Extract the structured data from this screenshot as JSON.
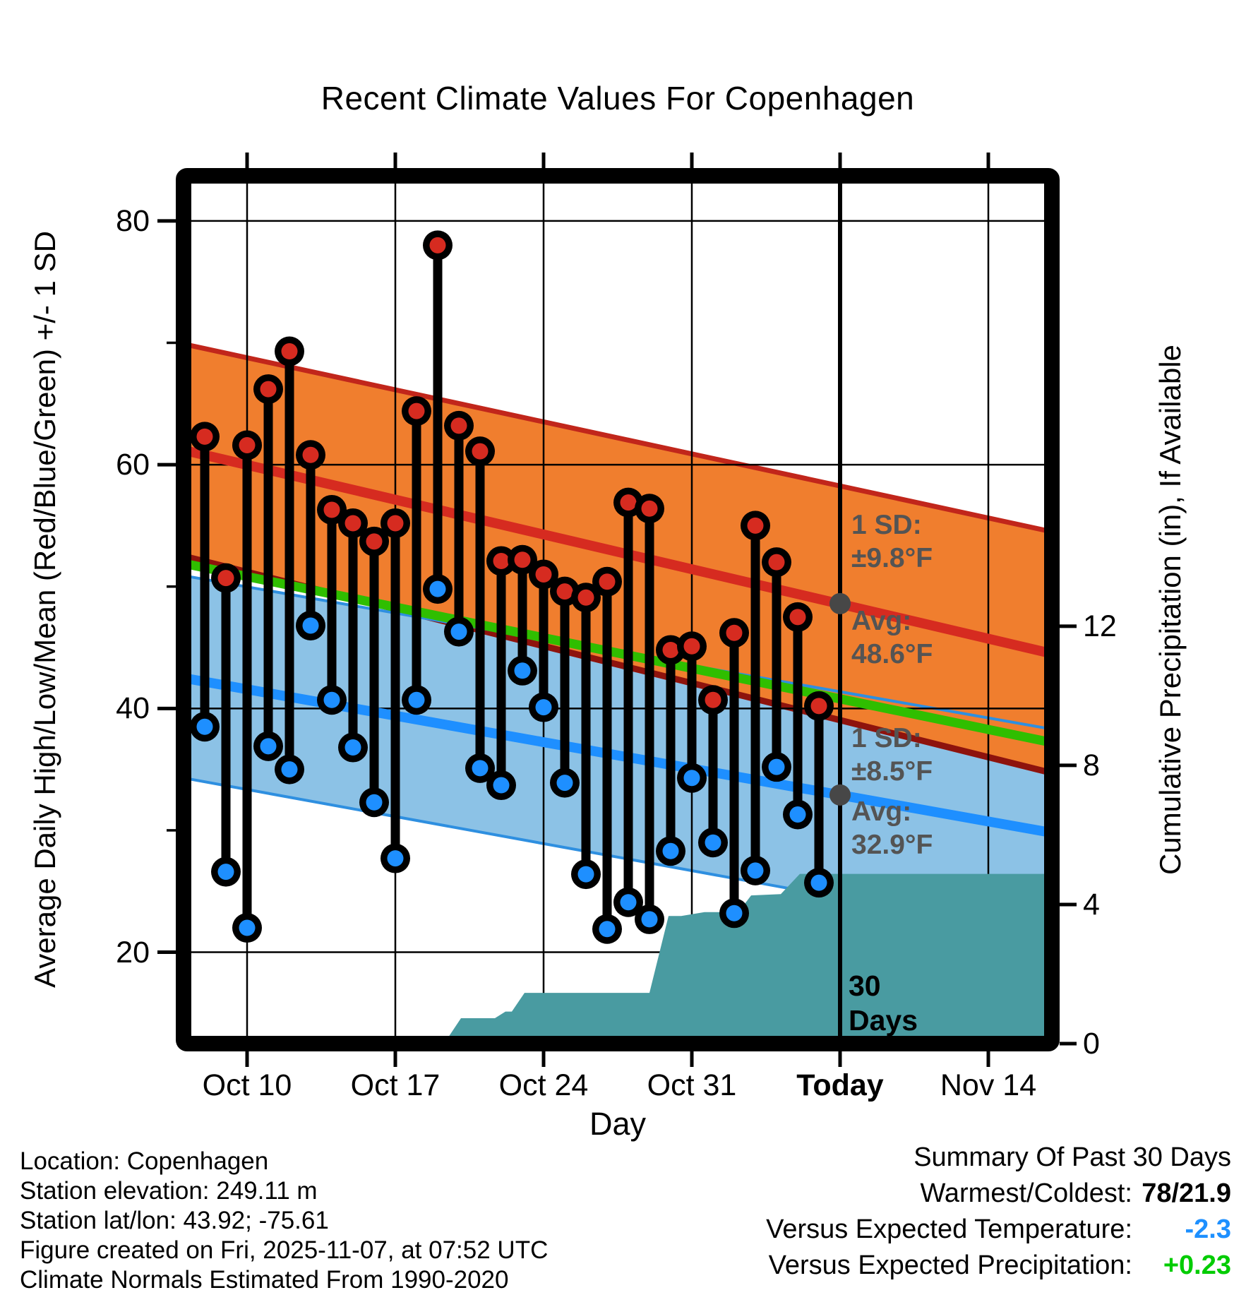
{
  "title": "Recent Climate Values For Copenhagen",
  "axis": {
    "y_left_label": "Average Daily High/Low/Mean (Red/Blue/Green) +/- 1 SD",
    "y_right_label": "Cumulative Precipitation (in), If Available",
    "x_label": "Day"
  },
  "chart_data": {
    "type": "line",
    "title": "Recent Climate Values For Copenhagen",
    "xlabel": "Day",
    "ylabel_left": "Average Daily High/Low/Mean (Red/Blue/Green) +/- 1 SD",
    "ylabel_right": "Cumulative Precipitation (in), If Available",
    "x_tick_labels": [
      "Oct 10",
      "Oct 17",
      "Oct 24",
      "Oct 31",
      "Today",
      "Nov 14"
    ],
    "x_tick_days": [
      2,
      9,
      16,
      23,
      30,
      37
    ],
    "x_bold_tick": "Today",
    "x_range_days": [
      -1,
      40
    ],
    "y_left_ticks_f": [
      80,
      60,
      40,
      20
    ],
    "y_left_minor_ticks_f": [
      70,
      50,
      30
    ],
    "y_left_range_f": [
      12.5,
      83.7
    ],
    "y_right_ticks_in": [
      12,
      8,
      4,
      0
    ],
    "y_right_range_in": [
      0,
      24.95
    ],
    "grid": "major-only",
    "days": [
      "Oct 8",
      "Oct 9",
      "Oct 10",
      "Oct 11",
      "Oct 12",
      "Oct 13",
      "Oct 14",
      "Oct 15",
      "Oct 16",
      "Oct 17",
      "Oct 18",
      "Oct 19",
      "Oct 20",
      "Oct 21",
      "Oct 22",
      "Oct 23",
      "Oct 24",
      "Oct 25",
      "Oct 26",
      "Oct 27",
      "Oct 28",
      "Oct 29",
      "Oct 30",
      "Oct 31",
      "Nov 1",
      "Nov 2",
      "Nov 3",
      "Nov 4",
      "Nov 5",
      "Nov 6"
    ],
    "daily_high_f": [
      62.3,
      50.7,
      61.6,
      66.2,
      69.3,
      60.8,
      56.3,
      55.2,
      53.7,
      55.2,
      64.4,
      78,
      63.2,
      61.1,
      52.1,
      52.2,
      51,
      49.6,
      49.1,
      50.4,
      56.9,
      56.4,
      44.8,
      45.1,
      40.7,
      46.2,
      55,
      52,
      47.5,
      40.2
    ],
    "daily_low_f": [
      38.5,
      26.6,
      22,
      36.9,
      35,
      46.8,
      40.7,
      36.8,
      32.3,
      27.7,
      40.7,
      49.8,
      46.3,
      35.1,
      33.7,
      43.1,
      40.1,
      33.9,
      26.4,
      21.9,
      24.1,
      22.7,
      28.3,
      34.3,
      29,
      23.2,
      26.7,
      35.2,
      31.3,
      25.7
    ],
    "normals_linear_left_to_right": {
      "high_avg_f": [
        61.2,
        44.5
      ],
      "high_band_top_f": [
        69.9,
        54.5
      ],
      "high_band_bottom_f": [
        52.5,
        34.7
      ],
      "mean_avg_f": [
        51.9,
        37.2
      ],
      "low_avg_f": [
        42.5,
        29.8
      ],
      "low_band_top_f": [
        50.9,
        38.3
      ],
      "low_band_bottom_f": [
        34.3,
        21.3
      ]
    },
    "today_marker": {
      "day_index": 30,
      "high_avg_f": 48.6,
      "high_sd_f": 9.8,
      "low_avg_f": 32.9,
      "low_sd_f": 8.5
    },
    "precip_cumulative_steps_day_in": [
      [
        11.3,
        0
      ],
      [
        12.1,
        0.73
      ],
      [
        13.7,
        0.73
      ],
      [
        14.2,
        0.92
      ],
      [
        14.5,
        0.92
      ],
      [
        15.1,
        1.46
      ],
      [
        21,
        1.46
      ],
      [
        21.9,
        3.67
      ],
      [
        22.5,
        3.67
      ],
      [
        23.6,
        3.78
      ],
      [
        25.2,
        3.78
      ],
      [
        25.8,
        4.26
      ],
      [
        27.2,
        4.3
      ],
      [
        28.1,
        4.88
      ],
      [
        40,
        4.88
      ]
    ],
    "colors": {
      "high_band_fill": "#F07E2E",
      "high_band_edge_top": "#C1261B",
      "high_band_edge_bottom": "#8E130D",
      "high_avg_line": "#D62B20",
      "high_dot": "#D62B20",
      "mean_line": "#2FBE00",
      "low_band_fill": "#8CC2E6",
      "low_band_edge": "#2E8FE0",
      "low_avg_line": "#1E8FFF",
      "low_dot": "#1E8FFF",
      "precip_fill": "#499BA1",
      "stem": "#000000",
      "today_line": "#000000",
      "avg_marker": "#474747",
      "annotation_text": "#545454"
    }
  },
  "annotations": {
    "high_sd_label": "1 SD:",
    "high_sd_value": "±9.8°F",
    "high_avg_label": "Avg:",
    "high_avg_value": "48.6°F",
    "low_sd_label": "1 SD:",
    "low_sd_value": "±8.5°F",
    "low_avg_label": "Avg:",
    "low_avg_value": "32.9°F",
    "window_line1": "30",
    "window_line2": "Days"
  },
  "footer": {
    "lines": [
      "Location: Copenhagen",
      "Station elevation: 249.11 m",
      "Station lat/lon: 43.92; -75.61",
      "Figure created on Fri, 2025-11-07, at 07:52 UTC",
      "Climate Normals Estimated From 1990-2020"
    ]
  },
  "summary": {
    "title": "Summary Of Past 30 Days",
    "rows": [
      {
        "label": "Warmest/Coldest:",
        "value": "78/21.9",
        "color": "#000000"
      },
      {
        "label": "Versus Expected Temperature:",
        "value": "-2.3",
        "color": "#1E90FF"
      },
      {
        "label": "Versus Expected Precipitation:",
        "value": "+0.23",
        "color": "#00CC00"
      }
    ]
  }
}
